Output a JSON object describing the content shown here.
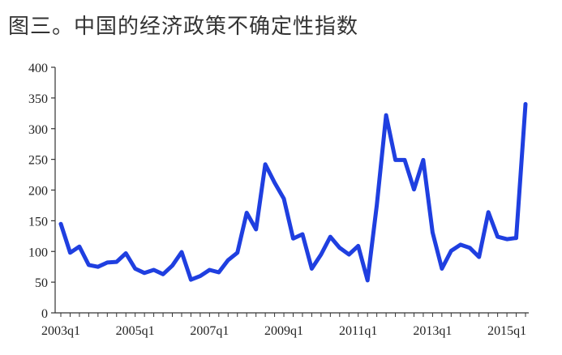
{
  "chart_data": {
    "type": "line",
    "title": "图三。中国的经济政策不确定性指数",
    "xlabel": "",
    "ylabel": "",
    "ylim": [
      0,
      400
    ],
    "yticks": [
      0,
      50,
      100,
      150,
      200,
      250,
      300,
      350,
      400
    ],
    "xtick_labels": [
      "2003q1",
      "2005q1",
      "2007q1",
      "2009q1",
      "2011q1",
      "2013q1",
      "2015q1"
    ],
    "grid": false,
    "series": [
      {
        "color": "#1f3fe0",
        "x": [
          "2003q1",
          "2003q2",
          "2003q3",
          "2003q4",
          "2004q1",
          "2004q2",
          "2004q3",
          "2004q4",
          "2005q1",
          "2005q2",
          "2005q3",
          "2005q4",
          "2006q1",
          "2006q2",
          "2006q3",
          "2006q4",
          "2007q1",
          "2007q2",
          "2007q3",
          "2007q4",
          "2008q1",
          "2008q2",
          "2008q3",
          "2008q4",
          "2009q1",
          "2009q2",
          "2009q3",
          "2009q4",
          "2010q1",
          "2010q2",
          "2010q3",
          "2010q4",
          "2011q1",
          "2011q2",
          "2011q3",
          "2011q4",
          "2012q1",
          "2012q2",
          "2012q3",
          "2012q4",
          "2013q1",
          "2013q2",
          "2013q3",
          "2013q4",
          "2014q1",
          "2014q2",
          "2014q3",
          "2014q4",
          "2015q1",
          "2015q2"
        ],
        "values": [
          145,
          98,
          108,
          78,
          75,
          82,
          83,
          97,
          72,
          65,
          70,
          63,
          77,
          99,
          54,
          60,
          70,
          66,
          86,
          98,
          163,
          136,
          242,
          212,
          186,
          121,
          128,
          72,
          95,
          124,
          106,
          95,
          109,
          53,
          175,
          322,
          249,
          249,
          201,
          249,
          131,
          72,
          101,
          111,
          106,
          91,
          164,
          124,
          120,
          122
        ]
      },
      {
        "color": "#1f3fe0",
        "x": [
          "2015q2",
          "2015q3"
        ],
        "values": [
          122,
          340
        ]
      }
    ]
  }
}
